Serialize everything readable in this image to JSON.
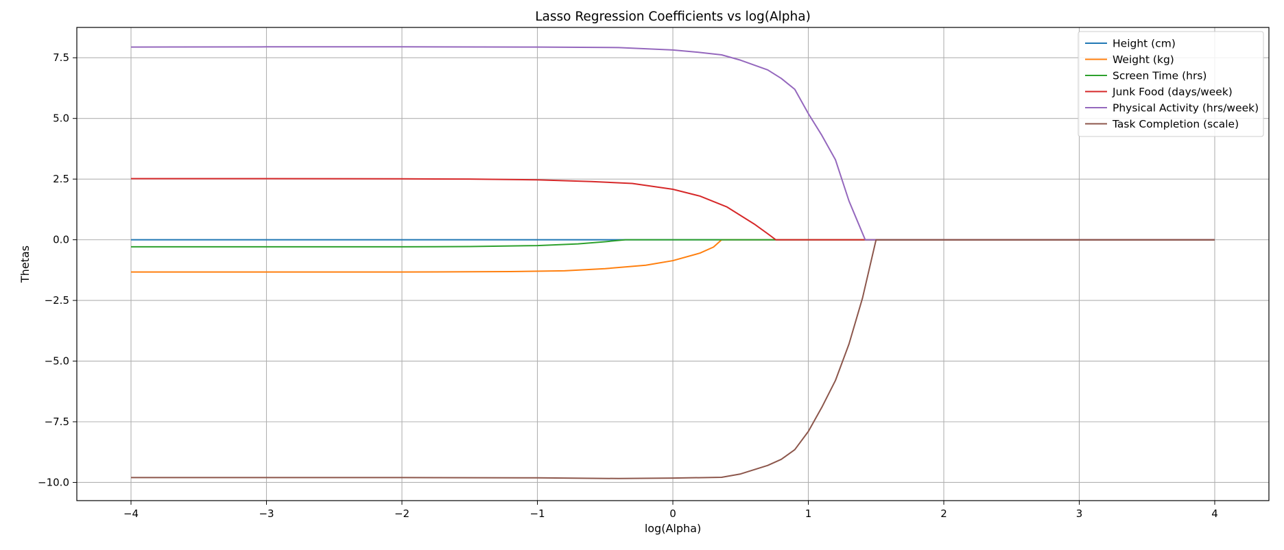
{
  "chart_data": {
    "type": "line",
    "title": "Lasso Regression Coefficients vs log(Alpha)",
    "xlabel": "log(Alpha)",
    "ylabel": "Thetas",
    "xlim": [
      -4.4,
      4.4
    ],
    "ylim": [
      -10.75,
      8.75
    ],
    "xticks": [
      -4,
      -3,
      -2,
      -1,
      0,
      1,
      2,
      3,
      4
    ],
    "xtick_labels": [
      "−4",
      "−3",
      "−2",
      "−1",
      "0",
      "1",
      "2",
      "3",
      "4"
    ],
    "yticks": [
      7.5,
      5.0,
      2.5,
      0.0,
      -2.5,
      -5.0,
      -7.5,
      -10.0
    ],
    "ytick_labels": [
      "7.5",
      "5.0",
      "2.5",
      "0.0",
      "−2.5",
      "−5.0",
      "−7.5",
      "−10.0"
    ],
    "grid": true,
    "legend_position": "top-right",
    "series": [
      {
        "name": "Height (cm)",
        "color": "#1f77b4",
        "points": [
          [
            -4,
            0.0
          ],
          [
            4,
            0.0
          ]
        ]
      },
      {
        "name": "Weight (kg)",
        "color": "#ff7f0e",
        "points": [
          [
            -4,
            -1.33
          ],
          [
            -3,
            -1.33
          ],
          [
            -2,
            -1.33
          ],
          [
            -1.2,
            -1.31
          ],
          [
            -0.8,
            -1.28
          ],
          [
            -0.5,
            -1.19
          ],
          [
            -0.2,
            -1.05
          ],
          [
            0.0,
            -0.86
          ],
          [
            0.2,
            -0.55
          ],
          [
            0.3,
            -0.3
          ],
          [
            0.36,
            0.0
          ],
          [
            4,
            0.0
          ]
        ]
      },
      {
        "name": "Screen Time (hrs)",
        "color": "#2ca02c",
        "points": [
          [
            -4,
            -0.29
          ],
          [
            -3,
            -0.29
          ],
          [
            -2,
            -0.29
          ],
          [
            -1.5,
            -0.28
          ],
          [
            -1.0,
            -0.24
          ],
          [
            -0.7,
            -0.17
          ],
          [
            -0.5,
            -0.08
          ],
          [
            -0.35,
            0.0
          ],
          [
            4,
            0.0
          ]
        ]
      },
      {
        "name": "Junk Food (days/week)",
        "color": "#d62728",
        "points": [
          [
            -4,
            2.52
          ],
          [
            -3,
            2.52
          ],
          [
            -2,
            2.51
          ],
          [
            -1.5,
            2.5
          ],
          [
            -1.0,
            2.47
          ],
          [
            -0.6,
            2.4
          ],
          [
            -0.3,
            2.32
          ],
          [
            0.0,
            2.08
          ],
          [
            0.2,
            1.8
          ],
          [
            0.4,
            1.35
          ],
          [
            0.6,
            0.65
          ],
          [
            0.7,
            0.25
          ],
          [
            0.76,
            0.0
          ],
          [
            4,
            0.0
          ]
        ]
      },
      {
        "name": "Physical Activity (hrs/week)",
        "color": "#9467bd",
        "points": [
          [
            -4,
            7.94
          ],
          [
            -3,
            7.95
          ],
          [
            -2,
            7.95
          ],
          [
            -1,
            7.94
          ],
          [
            -0.4,
            7.92
          ],
          [
            0.0,
            7.82
          ],
          [
            0.2,
            7.72
          ],
          [
            0.36,
            7.62
          ],
          [
            0.5,
            7.4
          ],
          [
            0.7,
            7.0
          ],
          [
            0.8,
            6.65
          ],
          [
            0.9,
            6.2
          ],
          [
            1.0,
            5.2
          ],
          [
            1.1,
            4.3
          ],
          [
            1.2,
            3.3
          ],
          [
            1.3,
            1.6
          ],
          [
            1.36,
            0.8
          ],
          [
            1.42,
            0.0
          ],
          [
            4,
            0.0
          ]
        ]
      },
      {
        "name": "Task Completion (scale)",
        "color": "#8c564b",
        "points": [
          [
            -4,
            -9.8
          ],
          [
            -3,
            -9.8
          ],
          [
            -2,
            -9.8
          ],
          [
            -1,
            -9.81
          ],
          [
            -0.4,
            -9.84
          ],
          [
            0.0,
            -9.82
          ],
          [
            0.36,
            -9.79
          ],
          [
            0.5,
            -9.65
          ],
          [
            0.7,
            -9.3
          ],
          [
            0.8,
            -9.05
          ],
          [
            0.9,
            -8.65
          ],
          [
            1.0,
            -7.9
          ],
          [
            1.1,
            -6.9
          ],
          [
            1.2,
            -5.8
          ],
          [
            1.3,
            -4.3
          ],
          [
            1.4,
            -2.4
          ],
          [
            1.5,
            0.0
          ],
          [
            4,
            0.0
          ]
        ]
      }
    ]
  }
}
